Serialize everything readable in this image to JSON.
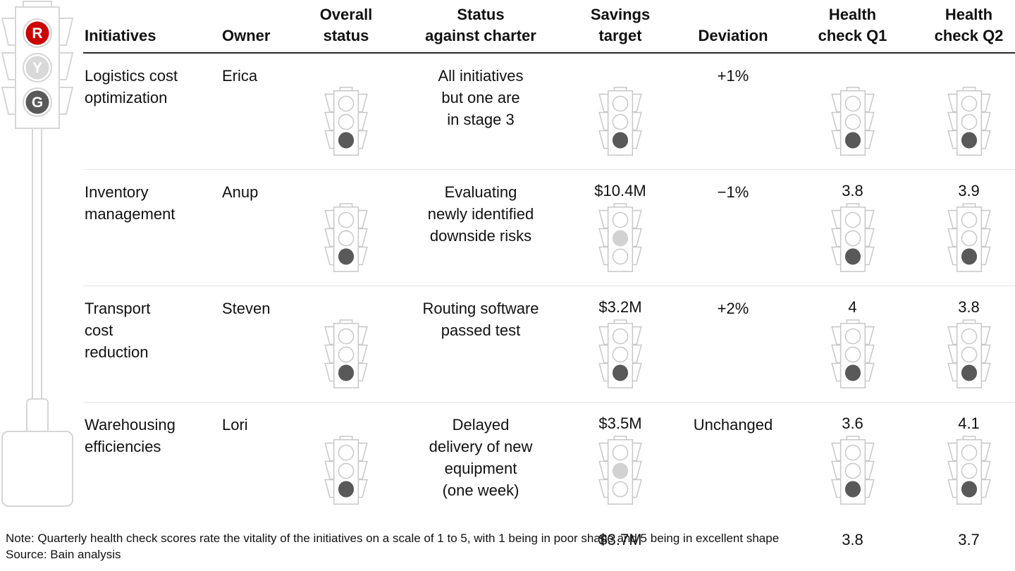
{
  "legend": {
    "lights": [
      {
        "letter": "R",
        "color": "#cc0000"
      },
      {
        "letter": "Y",
        "color": "#d9d9d9"
      },
      {
        "letter": "G",
        "color": "#595959"
      }
    ]
  },
  "chart_data": {
    "type": "table",
    "columns": [
      {
        "label": "Initiatives"
      },
      {
        "label": "Owner"
      },
      {
        "label": "Overall\nstatus"
      },
      {
        "label": "Status\nagainst charter"
      },
      {
        "label": "Savings\ntarget"
      },
      {
        "label": "Deviation"
      },
      {
        "label": "Health\ncheck Q1"
      },
      {
        "label": "Health\ncheck Q2"
      }
    ],
    "rows": [
      {
        "initiative": "Logistics cost\noptimization",
        "owner": "Erica",
        "overall_status": "green",
        "status_against_charter": "All initiatives\nbut one are\nin stage 3",
        "savings_status": "green",
        "savings_target": "$10.4M",
        "deviation": "+1%",
        "health_q1_status": "green",
        "health_q1": "3.8",
        "health_q2_status": "green",
        "health_q2": "3.9"
      },
      {
        "initiative": "Inventory\nmanagement",
        "owner": "Anup",
        "overall_status": "green",
        "status_against_charter": "Evaluating\nnewly identified\ndownside risks",
        "savings_status": "yellow",
        "savings_target": "$3.2M",
        "deviation": "−1%",
        "health_q1_status": "green",
        "health_q1": "4",
        "health_q2_status": "green",
        "health_q2": "3.8"
      },
      {
        "initiative": "Transport\ncost\nreduction",
        "owner": "Steven",
        "overall_status": "green",
        "status_against_charter": "Routing software\npassed test",
        "savings_status": "green",
        "savings_target": "$3.5M",
        "deviation": "+2%",
        "health_q1_status": "green",
        "health_q1": "3.6",
        "health_q2_status": "green",
        "health_q2": "4.1"
      },
      {
        "initiative": "Warehousing\nefficiencies",
        "owner": "Lori",
        "overall_status": "green",
        "status_against_charter": "Delayed\ndelivery of new\nequipment\n(one week)",
        "savings_status": "yellow",
        "savings_target": "$3.7M",
        "deviation": "Unchanged",
        "health_q1_status": "green",
        "health_q1": "3.8",
        "health_q2_status": "green",
        "health_q2": "3.7"
      }
    ]
  },
  "footer": {
    "note": "Note: Quarterly health check scores rate the vitality of the initiatives on a scale of 1 to 5, with 1 being in poor shape and 5 being in excellent shape",
    "source": "Source: Bain analysis"
  },
  "colors": {
    "status_dark": "#595959",
    "status_light": "#d2d2d2",
    "outline": "#c9c9c9",
    "legend_red": "#cc0000",
    "header_rule": "#2a2a2a",
    "row_rule": "#e4e4e4"
  }
}
